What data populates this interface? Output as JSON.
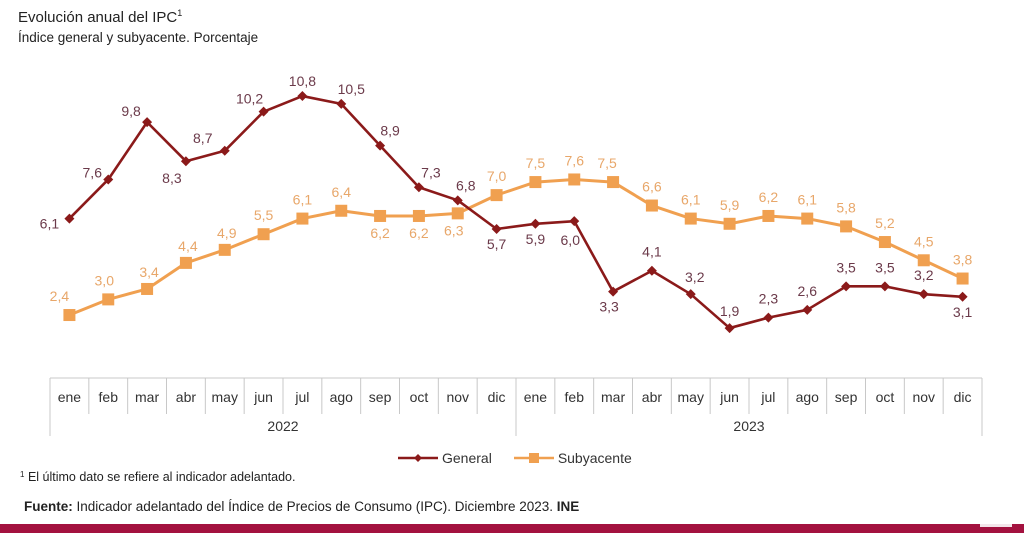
{
  "header": {
    "title": "Evolución anual del IPC",
    "title_superscript": "1",
    "subtitle": "Índice general y subyacente. Porcentaje"
  },
  "footnote": {
    "marker": "1",
    "text": "El último dato se refiere al indicador adelantado."
  },
  "source": {
    "label": "Fuente:",
    "text": " Indicador adelantado del Índice de Precios de Consumo  (IPC). Diciembre 2023. ",
    "org": "INE"
  },
  "colors": {
    "general": "#8b1a1a",
    "subyacente": "#f0a050",
    "general_label": "#6b3a4a",
    "subyacente_label": "#e8a76a",
    "axis": "#c8c8c8",
    "brand_bar": "#a3123f"
  },
  "chart_data": {
    "type": "line",
    "title": "Evolución anual del IPC",
    "subtitle": "Índice general y subyacente. Porcentaje",
    "xlabel": "",
    "ylabel": "",
    "grid": false,
    "legend_position": "bottom-center",
    "categories": [
      "ene",
      "feb",
      "mar",
      "abr",
      "may",
      "jun",
      "jul",
      "ago",
      "sep",
      "oct",
      "nov",
      "dic",
      "ene",
      "feb",
      "mar",
      "abr",
      "may",
      "jun",
      "jul",
      "ago",
      "sep",
      "oct",
      "nov",
      "dic"
    ],
    "year_groups": [
      {
        "label": "2022",
        "count": 12
      },
      {
        "label": "2023",
        "count": 12
      }
    ],
    "ylim": [
      0,
      12
    ],
    "series": [
      {
        "name": "General",
        "marker": "diamond",
        "values": [
          6.1,
          7.6,
          9.8,
          8.3,
          8.7,
          10.2,
          10.8,
          10.5,
          8.9,
          7.3,
          6.8,
          5.7,
          5.9,
          6.0,
          3.3,
          4.1,
          3.2,
          1.9,
          2.3,
          2.6,
          3.5,
          3.5,
          3.2,
          3.1
        ],
        "labels": [
          "6,1",
          "7,6",
          "9,8",
          "8,3",
          "8,7",
          "10,2",
          "10,8",
          "10,5",
          "8,9",
          "7,3",
          "6,8",
          "5,7",
          "5,9",
          "6,0",
          "3,3",
          "4,1",
          "3,2",
          "1,9",
          "2,3",
          "2,6",
          "3,5",
          "3,5",
          "3,2",
          "3,1"
        ]
      },
      {
        "name": "Subyacente",
        "marker": "square",
        "values": [
          2.4,
          3.0,
          3.4,
          4.4,
          4.9,
          5.5,
          6.1,
          6.4,
          6.2,
          6.2,
          6.3,
          7.0,
          7.5,
          7.6,
          7.5,
          6.6,
          6.1,
          5.9,
          6.2,
          6.1,
          5.8,
          5.2,
          4.5,
          3.8
        ],
        "labels": [
          "2,4",
          "3,0",
          "3,4",
          "4,4",
          "4,9",
          "5,5",
          "6,1",
          "6,4",
          "6,2",
          "6,2",
          "6,3",
          "7,0",
          "7,5",
          "7,6",
          "7,5",
          "6,6",
          "6,1",
          "5,9",
          "6,2",
          "6,1",
          "5,8",
          "5,2",
          "4,5",
          "3,8"
        ]
      }
    ]
  }
}
